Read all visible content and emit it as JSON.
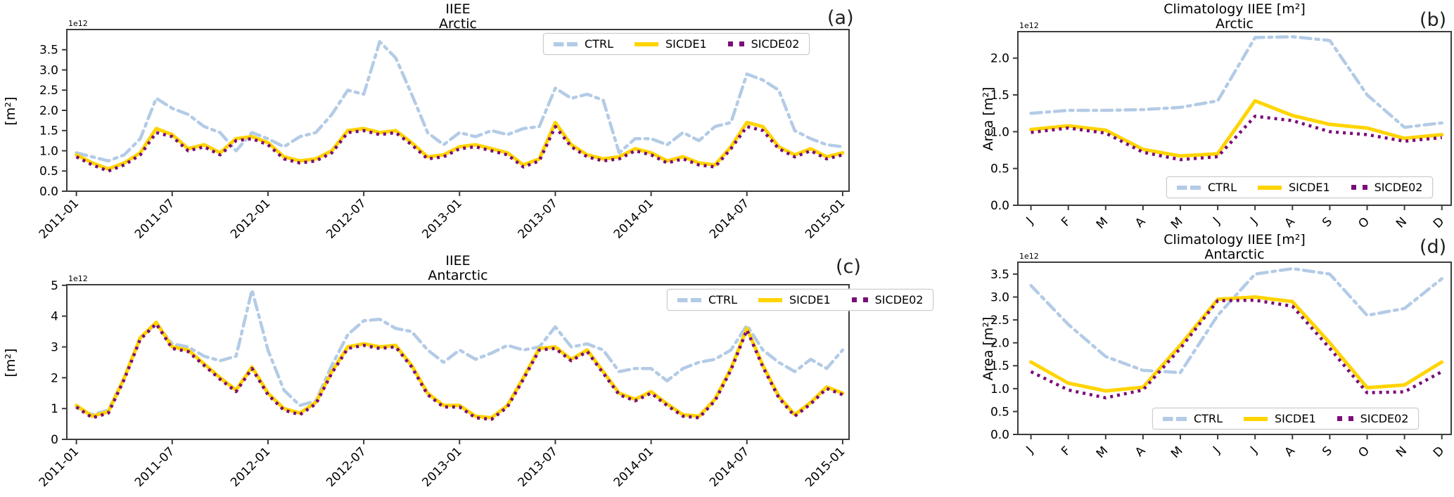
{
  "figure": {
    "background": "#ffffff",
    "font_color": "#000000",
    "axis_color": "#3c3c3c"
  },
  "chart_data": [
    {
      "id": "a",
      "type": "line",
      "title": "IIEE",
      "subtitle": "Arctic",
      "corner_label": "(a)",
      "ylabel": "[m²]",
      "offset_text": "1e12",
      "grid": false,
      "legend_position": "top-right",
      "ylim": [
        0,
        4.0
      ],
      "ytick_values": [
        0.0,
        0.5,
        1.0,
        1.5,
        2.0,
        2.5,
        3.0,
        3.5
      ],
      "ytick_labels": [
        "0.0",
        "0.5",
        "1.0",
        "1.5",
        "2.0",
        "2.5",
        "3.0",
        "3.5"
      ],
      "xtick_positions": [
        0,
        6,
        12,
        18,
        24,
        30,
        36,
        42,
        48
      ],
      "xtick_labels": [
        "2011-01",
        "2011-07",
        "2012-01",
        "2012-07",
        "2013-01",
        "2013-07",
        "2014-01",
        "2014-07",
        "2015-01"
      ],
      "x_note": "monthly values 2011-01 .. 2015-01, units 1e12 m²",
      "series": [
        {
          "name": "CTRL",
          "color": "#b3cbe6",
          "style": "dashdot",
          "linewidth": 4.5,
          "values": [
            0.95,
            0.85,
            0.75,
            0.9,
            1.3,
            2.3,
            2.05,
            1.9,
            1.6,
            1.45,
            1.0,
            1.45,
            1.3,
            1.1,
            1.35,
            1.45,
            1.9,
            2.5,
            2.4,
            3.7,
            3.3,
            2.4,
            1.45,
            1.15,
            1.45,
            1.35,
            1.5,
            1.4,
            1.55,
            1.6,
            2.55,
            2.3,
            2.4,
            2.25,
            0.95,
            1.3,
            1.3,
            1.15,
            1.45,
            1.25,
            1.6,
            1.7,
            2.9,
            2.75,
            2.5,
            1.5,
            1.3,
            1.15,
            1.1
          ]
        },
        {
          "name": "SICDE1",
          "color": "#ffd400",
          "style": "solid",
          "linewidth": 5,
          "values": [
            0.9,
            0.7,
            0.55,
            0.7,
            0.95,
            1.55,
            1.4,
            1.05,
            1.15,
            0.95,
            1.3,
            1.35,
            1.2,
            0.85,
            0.75,
            0.8,
            1.0,
            1.5,
            1.55,
            1.45,
            1.5,
            1.2,
            0.85,
            0.9,
            1.1,
            1.15,
            1.05,
            0.95,
            0.65,
            0.8,
            1.7,
            1.15,
            0.9,
            0.8,
            0.85,
            1.05,
            0.95,
            0.75,
            0.85,
            0.7,
            0.65,
            1.1,
            1.7,
            1.6,
            1.1,
            0.9,
            1.05,
            0.85,
            0.95
          ]
        },
        {
          "name": "SICDE02",
          "color": "#7a0d7a",
          "style": "dotted",
          "linewidth": 4.5,
          "values": [
            0.85,
            0.65,
            0.5,
            0.65,
            0.9,
            1.45,
            1.35,
            1.0,
            1.1,
            0.9,
            1.25,
            1.3,
            1.15,
            0.8,
            0.7,
            0.75,
            0.95,
            1.45,
            1.5,
            1.4,
            1.45,
            1.15,
            0.8,
            0.85,
            1.05,
            1.1,
            1.0,
            0.9,
            0.6,
            0.75,
            1.6,
            1.1,
            0.85,
            0.75,
            0.8,
            1.0,
            0.9,
            0.7,
            0.8,
            0.65,
            0.6,
            1.05,
            1.6,
            1.5,
            1.05,
            0.85,
            1.0,
            0.8,
            0.9
          ]
        }
      ]
    },
    {
      "id": "b",
      "type": "line",
      "title": "Climatology IIEE [m²]",
      "subtitle": "Arctic",
      "corner_label": "(b)",
      "ylabel": "Area [m²]",
      "offset_text": "1e12",
      "grid": false,
      "legend_position": "bottom-right",
      "ylim": [
        0,
        2.36
      ],
      "ytick_values": [
        0.0,
        0.5,
        1.0,
        1.5,
        2.0
      ],
      "ytick_labels": [
        "0.0",
        "0.5",
        "1.0",
        "1.5",
        "2.0"
      ],
      "xtick_positions": [
        0,
        1,
        2,
        3,
        4,
        5,
        6,
        7,
        8,
        9,
        10,
        11
      ],
      "xtick_labels": [
        "J",
        "F",
        "M",
        "A",
        "M",
        "J",
        "J",
        "A",
        "S",
        "O",
        "N",
        "D"
      ],
      "x_note": "monthly climatology Jan..Dec, units 1e12 m²",
      "series": [
        {
          "name": "CTRL",
          "color": "#b3cbe6",
          "style": "dashdot",
          "linewidth": 4.5,
          "values": [
            1.25,
            1.29,
            1.29,
            1.3,
            1.33,
            1.42,
            2.28,
            2.29,
            2.24,
            1.5,
            1.06,
            1.12
          ]
        },
        {
          "name": "SICDE1",
          "color": "#ffd400",
          "style": "solid",
          "linewidth": 5,
          "values": [
            1.03,
            1.08,
            1.02,
            0.76,
            0.67,
            0.7,
            1.42,
            1.22,
            1.1,
            1.05,
            0.91,
            0.96
          ]
        },
        {
          "name": "SICDE02",
          "color": "#7a0d7a",
          "style": "dotted",
          "linewidth": 4.5,
          "values": [
            0.99,
            1.05,
            0.98,
            0.72,
            0.62,
            0.66,
            1.21,
            1.15,
            1.0,
            0.96,
            0.87,
            0.92
          ]
        }
      ]
    },
    {
      "id": "c",
      "type": "line",
      "title": "IIEE",
      "subtitle": "Antarctic",
      "corner_label": "(c)",
      "ylabel": "[m²]",
      "offset_text": "1e12",
      "grid": false,
      "legend_position": "top-right",
      "ylim": [
        0,
        5.02
      ],
      "ytick_values": [
        0,
        1,
        2,
        3,
        4,
        5
      ],
      "ytick_labels": [
        "0",
        "1",
        "2",
        "3",
        "4",
        "5"
      ],
      "xtick_positions": [
        0,
        6,
        12,
        18,
        24,
        30,
        36,
        42,
        48
      ],
      "xtick_labels": [
        "2011-01",
        "2011-07",
        "2012-01",
        "2012-07",
        "2013-01",
        "2013-07",
        "2014-01",
        "2014-07",
        "2015-01"
      ],
      "x_note": "monthly values 2011-01 .. 2015-01, units 1e12 m²",
      "series": [
        {
          "name": "CTRL",
          "color": "#b3cbe6",
          "style": "dashdot",
          "linewidth": 4.5,
          "values": [
            1.05,
            0.8,
            0.95,
            2.0,
            3.3,
            3.75,
            3.1,
            3.0,
            2.7,
            2.55,
            2.7,
            4.85,
            2.9,
            1.6,
            1.1,
            1.25,
            2.4,
            3.4,
            3.85,
            3.9,
            3.6,
            3.5,
            2.9,
            2.5,
            2.9,
            2.6,
            2.8,
            3.05,
            2.9,
            3.0,
            3.65,
            3.0,
            3.1,
            2.9,
            2.2,
            2.3,
            2.3,
            1.9,
            2.3,
            2.5,
            2.6,
            2.9,
            3.7,
            2.9,
            2.5,
            2.2,
            2.6,
            2.3,
            2.9
          ]
        },
        {
          "name": "SICDE1",
          "color": "#ffd400",
          "style": "solid",
          "linewidth": 5,
          "values": [
            1.1,
            0.75,
            0.9,
            2.0,
            3.3,
            3.8,
            3.0,
            2.9,
            2.45,
            2.0,
            1.6,
            2.35,
            1.5,
            1.0,
            0.85,
            1.2,
            2.2,
            3.0,
            3.1,
            3.0,
            3.05,
            2.4,
            1.5,
            1.1,
            1.1,
            0.75,
            0.7,
            1.1,
            2.0,
            2.95,
            3.0,
            2.6,
            2.9,
            2.2,
            1.5,
            1.3,
            1.55,
            1.15,
            0.8,
            0.75,
            1.3,
            2.3,
            3.6,
            2.4,
            1.4,
            0.8,
            1.2,
            1.7,
            1.5
          ]
        },
        {
          "name": "SICDE02",
          "color": "#7a0d7a",
          "style": "dotted",
          "linewidth": 4.5,
          "values": [
            1.05,
            0.7,
            0.85,
            1.95,
            3.25,
            3.75,
            2.95,
            2.85,
            2.4,
            1.95,
            1.55,
            2.3,
            1.45,
            0.95,
            0.8,
            1.15,
            2.15,
            2.95,
            3.05,
            2.95,
            3.0,
            2.35,
            1.45,
            1.05,
            1.05,
            0.7,
            0.65,
            1.05,
            1.95,
            2.9,
            2.95,
            2.55,
            2.85,
            2.15,
            1.45,
            1.25,
            1.5,
            1.1,
            0.75,
            0.7,
            1.25,
            2.25,
            3.55,
            2.35,
            1.35,
            0.75,
            1.15,
            1.65,
            1.45
          ]
        }
      ]
    },
    {
      "id": "d",
      "type": "line",
      "title": "Climatology IIEE [m²]",
      "subtitle": "Antarctic",
      "corner_label": "(d)",
      "ylabel": "Area [m²]",
      "offset_text": "1e12",
      "grid": false,
      "legend_position": "bottom-right",
      "ylim": [
        0,
        3.76
      ],
      "ytick_values": [
        0.0,
        0.5,
        1.0,
        1.5,
        2.0,
        2.5,
        3.0,
        3.5
      ],
      "ytick_labels": [
        "0.0",
        "0.5",
        "1.0",
        "1.5",
        "2.0",
        "2.5",
        "3.0",
        "3.5"
      ],
      "xtick_positions": [
        0,
        1,
        2,
        3,
        4,
        5,
        6,
        7,
        8,
        9,
        10,
        11
      ],
      "xtick_labels": [
        "J",
        "F",
        "M",
        "A",
        "M",
        "J",
        "J",
        "A",
        "S",
        "O",
        "N",
        "D"
      ],
      "x_note": "monthly climatology Jan..Dec, units 1e12 m²",
      "series": [
        {
          "name": "CTRL",
          "color": "#b3cbe6",
          "style": "dashdot",
          "linewidth": 4.5,
          "values": [
            3.25,
            2.4,
            1.7,
            1.4,
            1.35,
            2.6,
            3.5,
            3.62,
            3.5,
            2.6,
            2.75,
            3.4
          ]
        },
        {
          "name": "SICDE1",
          "color": "#ffd400",
          "style": "solid",
          "linewidth": 5,
          "values": [
            1.58,
            1.12,
            0.95,
            1.03,
            1.95,
            2.95,
            3.0,
            2.9,
            2.0,
            1.02,
            1.08,
            1.58
          ]
        },
        {
          "name": "SICDE02",
          "color": "#7a0d7a",
          "style": "dotted",
          "linewidth": 4.5,
          "values": [
            1.37,
            0.97,
            0.8,
            0.97,
            1.88,
            2.92,
            2.93,
            2.8,
            1.88,
            0.91,
            0.93,
            1.37
          ]
        }
      ]
    }
  ]
}
